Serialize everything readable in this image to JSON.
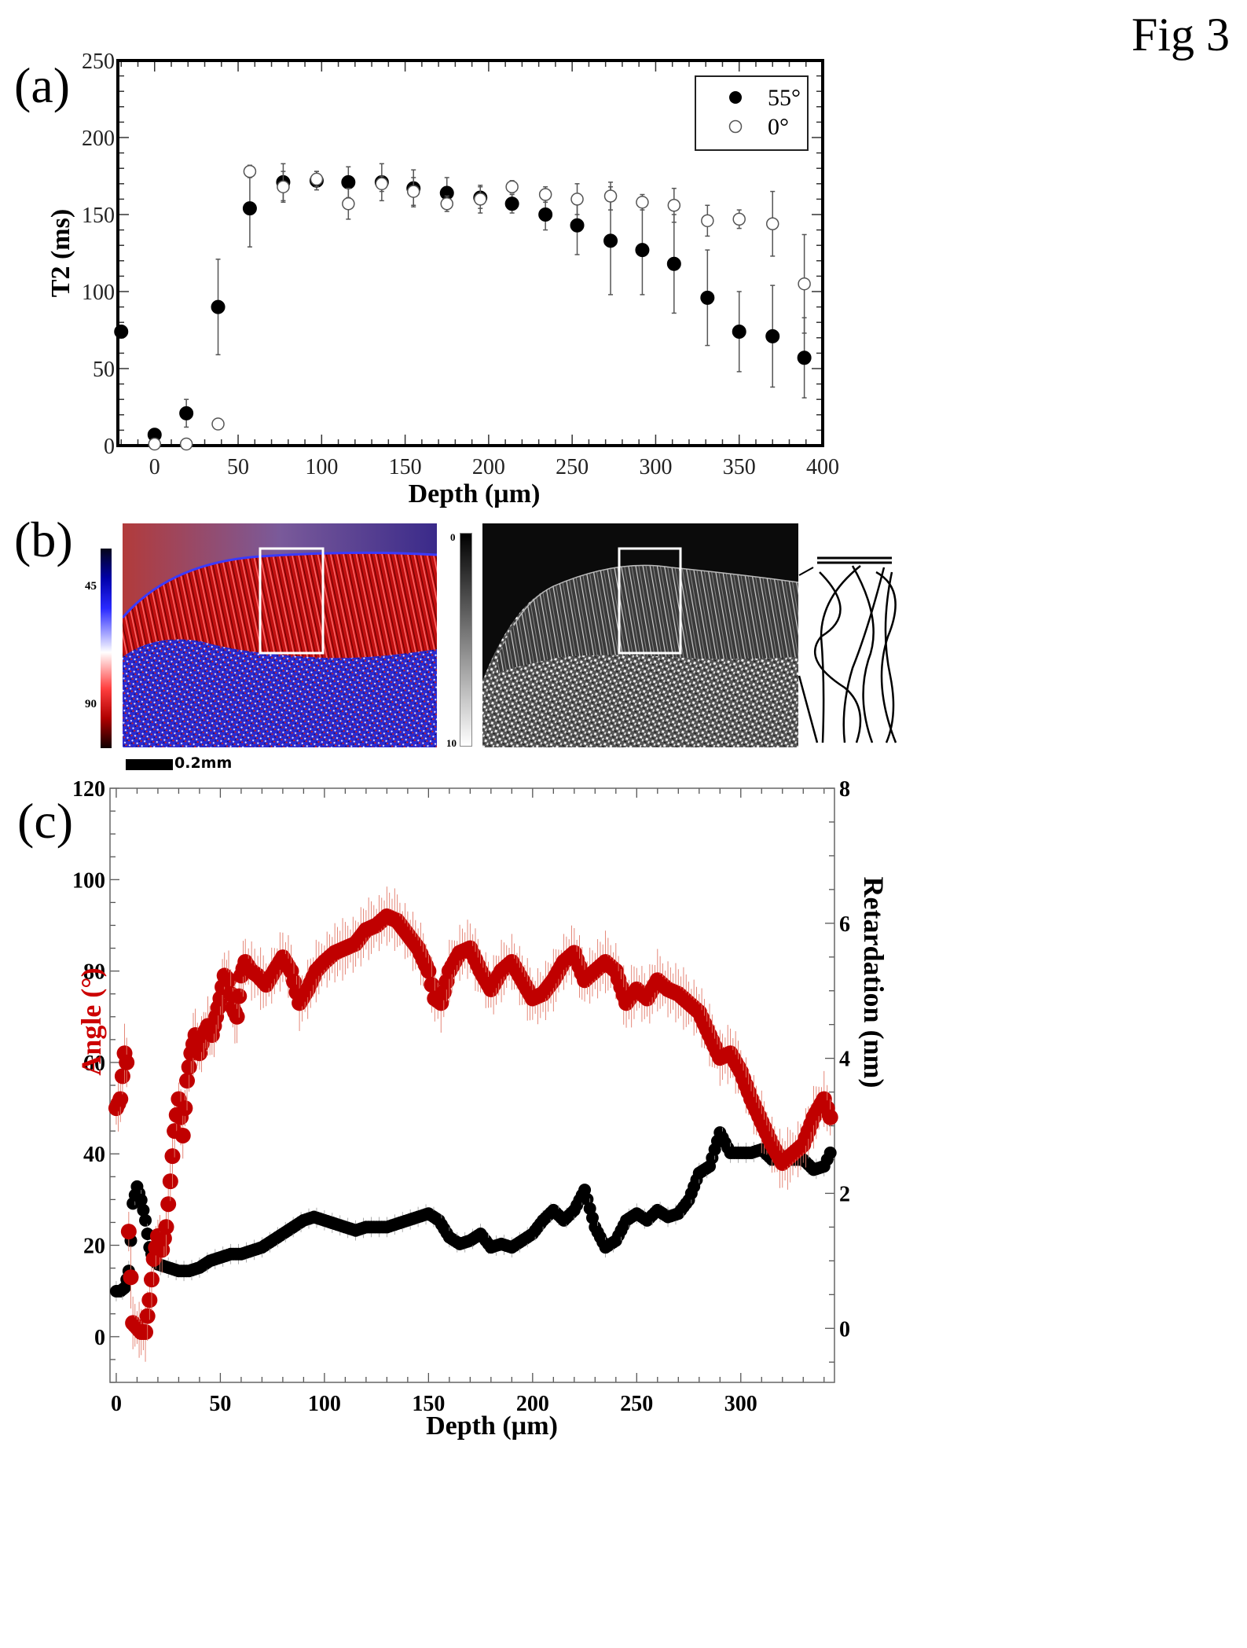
{
  "figure": {
    "label": "Fig 3",
    "panels": [
      "(a)",
      "(b)",
      "(c)"
    ]
  },
  "panel_b": {
    "left_colorbar": {
      "ticks": [
        "45",
        "90"
      ],
      "colors": [
        "#000000",
        "#0000ff",
        "#ffffff",
        "#ff0000",
        "#000000"
      ]
    },
    "right_colorbar": {
      "ticks": [
        "0",
        "10"
      ],
      "colors": [
        "#000000",
        "#ffffff"
      ]
    },
    "scale_bar": "0.2mm",
    "left_image": "polarized light angle map (red/blue) of cartilage cross-section with white ROI rectangle",
    "right_image": "grayscale retardation map of cartilage cross-section with white ROI rectangle",
    "schematic": "collagen fibre arrangement sketch"
  },
  "chart_data": [
    {
      "type": "scatter",
      "panel": "(a)",
      "title": "",
      "xlabel": "Depth (µm)",
      "ylabel": "T2 (ms)",
      "xlim": [
        -22,
        400
      ],
      "ylim": [
        0,
        250
      ],
      "xticks": [
        0,
        50,
        100,
        150,
        200,
        250,
        300,
        350,
        400
      ],
      "yticks": [
        0,
        50,
        100,
        150,
        200,
        250
      ],
      "legend_position": "top-right",
      "series": [
        {
          "name": "55°",
          "marker": "filled-circle",
          "color": "#000000",
          "x": [
            -20,
            0,
            19,
            38,
            57,
            77,
            97,
            116,
            136,
            155,
            175,
            195,
            214,
            234,
            253,
            273,
            292,
            311,
            331,
            350,
            370,
            389
          ],
          "y": [
            74,
            7,
            21,
            90,
            154,
            171,
            172,
            171,
            171,
            167,
            164,
            161,
            157,
            150,
            143,
            133,
            127,
            118,
            96,
            74,
            71,
            57
          ],
          "err": [
            0,
            0,
            9,
            31,
            25,
            12,
            6,
            10,
            12,
            12,
            10,
            7,
            6,
            10,
            19,
            35,
            29,
            32,
            31,
            26,
            33,
            26
          ]
        },
        {
          "name": "0°",
          "marker": "open-circle",
          "color": "#ffffff",
          "x": [
            0,
            19,
            38,
            57,
            77,
            97,
            116,
            136,
            155,
            175,
            195,
            214,
            234,
            253,
            273,
            292,
            311,
            331,
            350,
            370,
            389
          ],
          "y": [
            1,
            1,
            14,
            178,
            168,
            173,
            157,
            170,
            165,
            157,
            160,
            168,
            163,
            160,
            162,
            158,
            156,
            146,
            147,
            144,
            105
          ],
          "err": [
            0,
            0,
            0,
            4,
            10,
            5,
            10,
            5,
            9,
            5,
            9,
            4,
            5,
            10,
            9,
            5,
            11,
            10,
            6,
            21,
            32
          ]
        }
      ]
    },
    {
      "type": "scatter",
      "panel": "(c)",
      "title": "",
      "xlabel": "Depth (µm)",
      "ylabel": "Angle (°)",
      "ylabel_color": "#cc0000",
      "y2label": "Retardation (nm)",
      "xlim": [
        -3,
        345
      ],
      "ylim": [
        -10,
        120
      ],
      "y2lim": [
        -0.8,
        8
      ],
      "xticks": [
        0,
        50,
        100,
        150,
        200,
        250,
        300
      ],
      "yticks": [
        0,
        20,
        40,
        60,
        80,
        100,
        120
      ],
      "y2ticks": [
        0,
        2,
        4,
        6,
        8
      ],
      "series": [
        {
          "name": "Angle",
          "axis": "left",
          "color": "#cc0000",
          "x": [
            0,
            2,
            4,
            5,
            6,
            8,
            10,
            12,
            14,
            16,
            18,
            20,
            22,
            24,
            26,
            28,
            30,
            32,
            34,
            36,
            38,
            40,
            42,
            44,
            46,
            48,
            50,
            52,
            54,
            56,
            58,
            60,
            62,
            65,
            68,
            72,
            76,
            80,
            84,
            88,
            92,
            96,
            100,
            105,
            110,
            115,
            120,
            125,
            130,
            135,
            140,
            145,
            150,
            153,
            156,
            160,
            165,
            170,
            175,
            180,
            185,
            190,
            195,
            200,
            205,
            210,
            215,
            220,
            225,
            230,
            235,
            240,
            245,
            250,
            255,
            260,
            265,
            270,
            275,
            280,
            285,
            290,
            295,
            300,
            305,
            310,
            315,
            320,
            325,
            330,
            335,
            340,
            343
          ],
          "y": [
            50,
            52,
            62,
            60,
            23,
            3,
            2,
            1,
            1,
            8,
            17,
            22,
            19,
            24,
            34,
            45,
            52,
            44,
            56,
            62,
            66,
            62,
            66,
            68,
            66,
            70,
            74,
            79,
            78,
            72,
            70,
            79,
            82,
            80,
            79,
            77,
            80,
            83,
            80,
            73,
            76,
            80,
            82,
            84,
            85,
            86,
            89,
            90,
            92,
            91,
            88,
            85,
            80,
            74,
            73,
            80,
            84,
            85,
            80,
            76,
            80,
            82,
            78,
            74,
            75,
            78,
            82,
            84,
            78,
            80,
            82,
            80,
            73,
            76,
            74,
            78,
            76,
            75,
            73,
            71,
            66,
            61,
            62,
            58,
            52,
            47,
            42,
            38,
            40,
            42,
            48,
            52,
            48
          ],
          "err_typical": 6
        },
        {
          "name": "Retardation",
          "axis": "right",
          "color": "#000000",
          "x": [
            0,
            2,
            4,
            6,
            7,
            8,
            10,
            12,
            14,
            16,
            18,
            20,
            25,
            30,
            35,
            40,
            45,
            50,
            55,
            60,
            65,
            70,
            75,
            80,
            85,
            90,
            95,
            100,
            105,
            110,
            115,
            120,
            125,
            130,
            135,
            140,
            145,
            150,
            155,
            160,
            165,
            170,
            175,
            180,
            185,
            190,
            195,
            200,
            205,
            210,
            215,
            220,
            225,
            230,
            235,
            240,
            245,
            250,
            255,
            260,
            265,
            270,
            275,
            280,
            285,
            290,
            295,
            300,
            305,
            310,
            315,
            320,
            325,
            330,
            335,
            340,
            343
          ],
          "y": [
            0.55,
            0.55,
            0.6,
            0.85,
            1.3,
            1.85,
            2.1,
            1.9,
            1.6,
            1.2,
            1.0,
            0.95,
            0.9,
            0.85,
            0.85,
            0.9,
            1.0,
            1.05,
            1.1,
            1.1,
            1.15,
            1.2,
            1.3,
            1.4,
            1.5,
            1.6,
            1.65,
            1.6,
            1.55,
            1.5,
            1.45,
            1.5,
            1.5,
            1.5,
            1.55,
            1.6,
            1.65,
            1.7,
            1.6,
            1.35,
            1.25,
            1.3,
            1.4,
            1.2,
            1.25,
            1.2,
            1.3,
            1.4,
            1.6,
            1.75,
            1.6,
            1.75,
            2.05,
            1.5,
            1.2,
            1.3,
            1.6,
            1.7,
            1.6,
            1.75,
            1.65,
            1.7,
            1.9,
            2.3,
            2.4,
            2.9,
            2.6,
            2.6,
            2.6,
            2.65,
            2.5,
            2.55,
            2.5,
            2.5,
            2.35,
            2.4,
            2.6
          ],
          "err_typical": 0.15
        }
      ]
    }
  ]
}
